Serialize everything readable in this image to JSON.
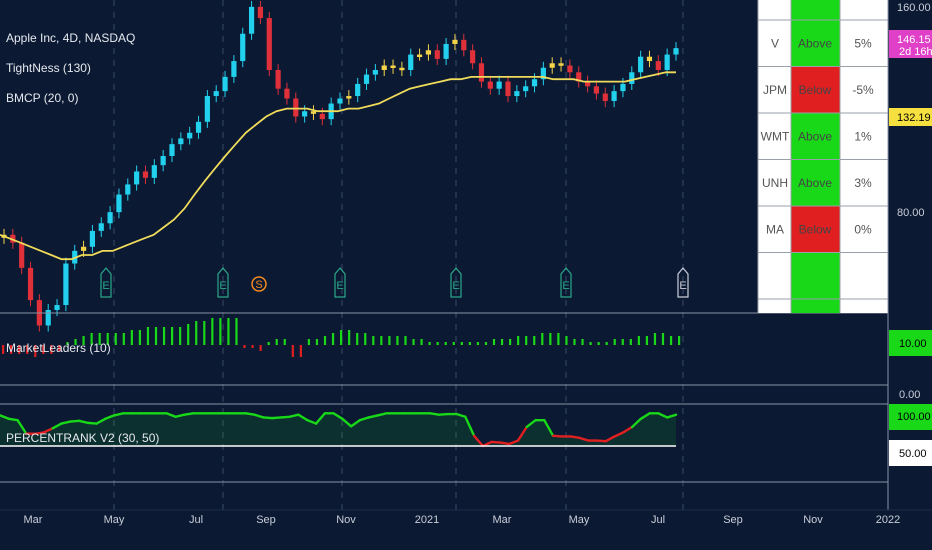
{
  "colors": {
    "background": "#0b1933",
    "up": "#22d1ee",
    "down": "#e0303a",
    "tight": "#f5d44a",
    "ma": "#f0dc5a",
    "green": "#18d818",
    "red": "#e02020",
    "grid": "#3a4a66",
    "price_tag_last": "#e040c8",
    "price_tag_ma": "#f5e040",
    "tag_green": "#18d818"
  },
  "legend": {
    "symbol": "Apple Inc, 4D, NASDAQ",
    "ind1": "TightNess (130)",
    "ind2": "BMCP (20, 0)",
    "ind3": "MarketLeaders (10)",
    "ind4": "PERCENTRANK V2 (30, 50)"
  },
  "price_axis": {
    "ticks": [
      "160.00",
      "80.00"
    ],
    "tag_last": "146.15",
    "tag_countdown": "2d 16h",
    "tag_ma": "132.19"
  },
  "pane2_axis": {
    "tag": "10.00",
    "tick": "0.00"
  },
  "pane3_axis": {
    "tag_top": "100.00",
    "tag_mid": "50.00"
  },
  "x_axis": [
    "Mar",
    "May",
    "Jul",
    "Sep",
    "Nov",
    "2021",
    "Mar",
    "May",
    "Jul",
    "Sep",
    "Nov",
    "2022"
  ],
  "earnings_markers": [
    "E",
    "E",
    "S",
    "E",
    "E",
    "E",
    "E"
  ],
  "leaders_table": [
    {
      "symbol": "V",
      "status": "Above",
      "pct": "5%"
    },
    {
      "symbol": "JPM",
      "status": "Below",
      "pct": "-5%"
    },
    {
      "symbol": "WMT",
      "status": "Above",
      "pct": "1%"
    },
    {
      "symbol": "UNH",
      "status": "Above",
      "pct": "3%"
    },
    {
      "symbol": "MA",
      "status": "Below",
      "pct": "0%"
    }
  ],
  "chart_data": {
    "type": "line",
    "title": "Apple Inc, 4D, NASDAQ",
    "candles_close": [
      77,
      75,
      69,
      62,
      57,
      60,
      61,
      70,
      73,
      74,
      78,
      80,
      83,
      88,
      91,
      95,
      93,
      97,
      100,
      104,
      106,
      108,
      112,
      122,
      124,
      130,
      137,
      150,
      164,
      158,
      133,
      125,
      121,
      114,
      116,
      115,
      113,
      119,
      121,
      122,
      127,
      131,
      133,
      135,
      134,
      133,
      140,
      140,
      142,
      138,
      145,
      147,
      142,
      136,
      128,
      125,
      128,
      122,
      124,
      126,
      129,
      134,
      136,
      135,
      132,
      128,
      126,
      123,
      120,
      124,
      127,
      132,
      139,
      137,
      133,
      140,
      143
    ],
    "ma_values": [
      77,
      76,
      75,
      74,
      73,
      72,
      71,
      71,
      72,
      72,
      73,
      73,
      74,
      75,
      76,
      77,
      79,
      81,
      84,
      88,
      92,
      96,
      100,
      104,
      108,
      111,
      114,
      116,
      117,
      117,
      117,
      116,
      116,
      116,
      117,
      117,
      118,
      119,
      121,
      123,
      125,
      126,
      127,
      128,
      129,
      129,
      130,
      130,
      130,
      130,
      130,
      130,
      130,
      130,
      129,
      129,
      129,
      128,
      128,
      128,
      128,
      128,
      129,
      130,
      131,
      132,
      132
    ],
    "market_leaders": [
      -3,
      -3,
      -3,
      -3,
      -4,
      -3,
      -3,
      -2,
      1,
      2,
      3,
      4,
      4,
      4,
      4,
      4,
      5,
      5,
      6,
      6,
      6,
      6,
      6,
      7,
      8,
      8,
      9,
      9,
      9,
      9,
      -1,
      -1,
      -2,
      1,
      2,
      2,
      -4,
      -4,
      2,
      2,
      3,
      4,
      5,
      5,
      4,
      4,
      3,
      3,
      3,
      3,
      3,
      2,
      2,
      1,
      1,
      1,
      1,
      1,
      1,
      1,
      1,
      2,
      2,
      2,
      3,
      3,
      3,
      4,
      4,
      4,
      3,
      2,
      2,
      1,
      1,
      1,
      2,
      2,
      2,
      3,
      3,
      4,
      4,
      3,
      3
    ],
    "percentrank": [
      95,
      90,
      88,
      68,
      68,
      70,
      76,
      83,
      86,
      87,
      84,
      83,
      90,
      95,
      98,
      98,
      98,
      98,
      98,
      98,
      93,
      96,
      98,
      98,
      98,
      98,
      98,
      98,
      98,
      96,
      92,
      91,
      92,
      93,
      96,
      88,
      83,
      98,
      98,
      90,
      79,
      88,
      92,
      95,
      98,
      98,
      98,
      98,
      98,
      98,
      96,
      97,
      97,
      93,
      65,
      50,
      56,
      55,
      53,
      58,
      78,
      88,
      88,
      65,
      64,
      64,
      62,
      58,
      58,
      57,
      64,
      70,
      78,
      90,
      98,
      98,
      92,
      96
    ],
    "threshold": 50,
    "ylim": [
      60,
      165
    ]
  }
}
